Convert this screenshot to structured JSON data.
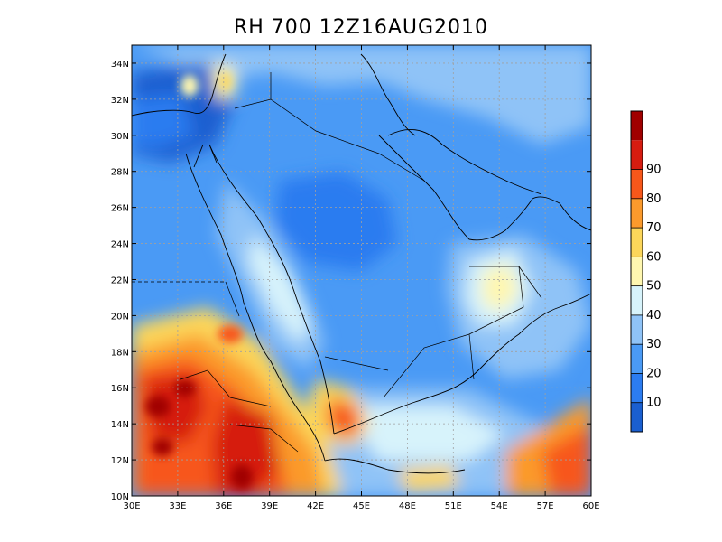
{
  "title": "RH 700 12Z16AUG2010",
  "chart_data": {
    "type": "heatmap",
    "title": "RH 700 12Z16AUG2010",
    "xlabel": "",
    "ylabel": "",
    "xlim": [
      30,
      60
    ],
    "ylim": [
      10,
      35
    ],
    "x_ticks": [
      "30E",
      "33E",
      "36E",
      "39E",
      "42E",
      "45E",
      "48E",
      "51E",
      "54E",
      "57E",
      "60E"
    ],
    "y_ticks": [
      "10N",
      "12N",
      "14N",
      "16N",
      "18N",
      "20N",
      "22N",
      "24N",
      "26N",
      "28N",
      "30N",
      "32N",
      "34N"
    ],
    "grid": true,
    "colorbar": {
      "position": "right",
      "levels": [
        0,
        10,
        20,
        30,
        40,
        50,
        60,
        70,
        80,
        90,
        100
      ],
      "tick_labels": [
        "10",
        "20",
        "30",
        "40",
        "50",
        "60",
        "70",
        "80",
        "90"
      ],
      "colors": [
        "#1a5fd0",
        "#2b7cf0",
        "#4a9af5",
        "#8fc3f7",
        "#d7f3fb",
        "#fff7b0",
        "#fcd65a",
        "#fb9a2c",
        "#f7571a",
        "#d61c10",
        "#a00000"
      ]
    },
    "fields": [
      {
        "region": "northwest corner near 31N 31E",
        "value": 12
      },
      {
        "region": "central Arabian plateau near 25N 43E",
        "value": 22
      },
      {
        "region": "Red Sea coast near 22N 39E",
        "value": 45
      },
      {
        "region": "Sudan near 15N 32E",
        "value": 92
      },
      {
        "region": "Ethiopia near 12N 37E",
        "value": 88
      },
      {
        "region": "Yemen highlands near 14N 44E",
        "value": 82
      },
      {
        "region": "Gulf of Aden near 12N 48E",
        "value": 65
      },
      {
        "region": "Oman interior near 21N 54E",
        "value": 58
      },
      {
        "region": "Arabian Sea near 13N 58E",
        "value": 72
      },
      {
        "region": "Persian Gulf near 27N 51E",
        "value": 35
      },
      {
        "region": "Levant near 33N 36E",
        "value": 52
      }
    ]
  }
}
